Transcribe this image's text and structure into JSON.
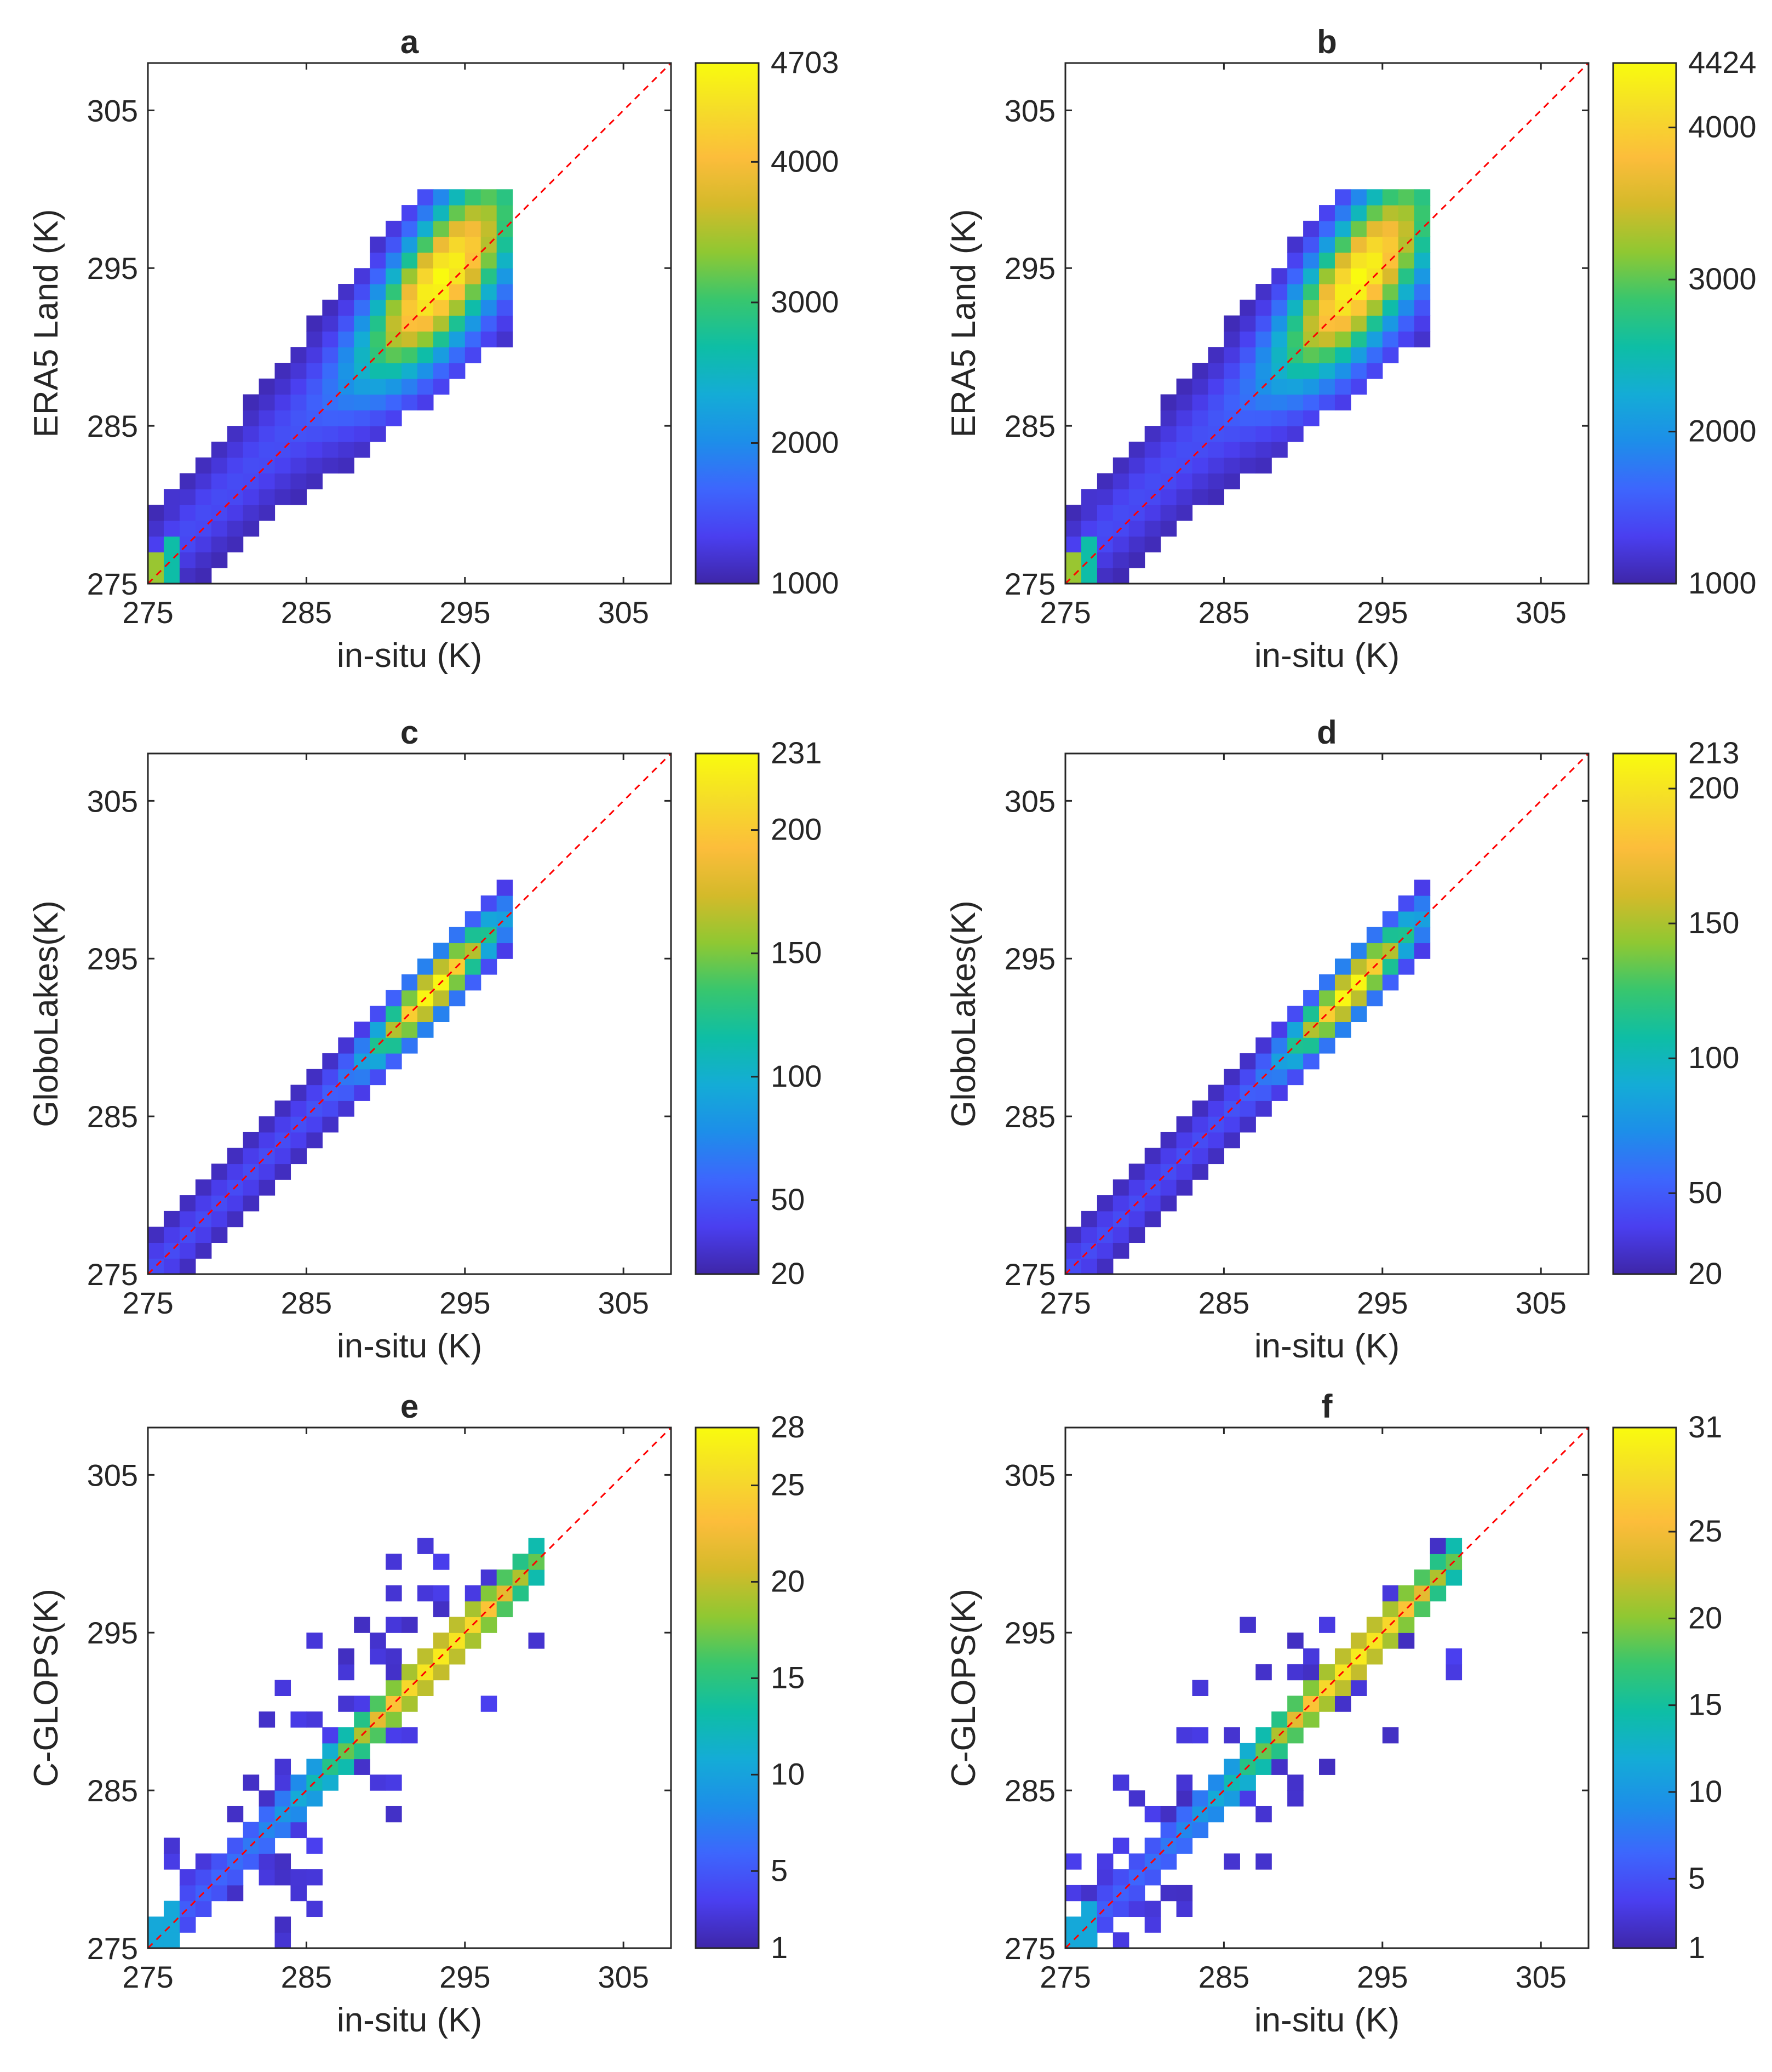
{
  "colors": {
    "reference_line": "#ff0000",
    "axes": "#262626",
    "colormap": [
      "#3e26a8",
      "#4a3ff0",
      "#3d66fd",
      "#1d8ee9",
      "#14acd6",
      "#0ebea5",
      "#38c66e",
      "#8fc832",
      "#d4ba2a",
      "#fcbd3b",
      "#f5dc29",
      "#f9fb0e"
    ]
  },
  "chart_data": [
    {
      "panel": "a",
      "type": "heatmap",
      "title": "a",
      "xlabel": "in-situ (K)",
      "ylabel": "ERA5 Land (K)",
      "xlim": [
        275,
        308
      ],
      "ylim": [
        275,
        308
      ],
      "xticks": [
        275,
        285,
        295,
        305
      ],
      "yticks": [
        275,
        285,
        295,
        305
      ],
      "bin_size": 1,
      "reference_line": "1:1",
      "colorbar": {
        "min": 1000,
        "max": 4703,
        "ticks": [
          1000,
          2000,
          3000,
          4000,
          4703
        ]
      },
      "density": {
        "kind": "wide",
        "x_range": [
          275,
          298
        ],
        "peak": [
          293.5,
          294.5
        ],
        "spread": 2.6,
        "low_x_cluster": true
      }
    },
    {
      "panel": "b",
      "type": "heatmap",
      "title": "b",
      "xlabel": "in-situ (K)",
      "ylabel": "ERA5 Land (K)",
      "xlim": [
        275,
        308
      ],
      "ylim": [
        275,
        308
      ],
      "xticks": [
        275,
        285,
        295,
        305
      ],
      "yticks": [
        275,
        285,
        295,
        305
      ],
      "bin_size": 1,
      "reference_line": "1:1",
      "colorbar": {
        "min": 1000,
        "max": 4424,
        "ticks": [
          1000,
          2000,
          3000,
          4000,
          4424
        ]
      },
      "density": {
        "kind": "wide",
        "x_range": [
          275,
          298
        ],
        "peak": [
          293.5,
          294.5
        ],
        "spread": 2.6,
        "low_x_cluster": true
      }
    },
    {
      "panel": "c",
      "type": "heatmap",
      "title": "c",
      "xlabel": "in-situ (K)",
      "ylabel": "GloboLakes(K)",
      "xlim": [
        275,
        308
      ],
      "ylim": [
        275,
        308
      ],
      "xticks": [
        275,
        285,
        295,
        305
      ],
      "yticks": [
        275,
        285,
        295,
        305
      ],
      "bin_size": 1,
      "reference_line": "1:1",
      "colorbar": {
        "min": 20,
        "max": 231,
        "ticks": [
          20,
          50,
          100,
          150,
          200,
          231
        ]
      },
      "density": {
        "kind": "narrow",
        "x_range": [
          275,
          298
        ],
        "peak": [
          293,
          293
        ],
        "spread": 1.2,
        "low_x_cluster": false
      }
    },
    {
      "panel": "d",
      "type": "heatmap",
      "title": "d",
      "xlabel": "in-situ (K)",
      "ylabel": "GloboLakes(K)",
      "xlim": [
        275,
        308
      ],
      "ylim": [
        275,
        308
      ],
      "xticks": [
        275,
        285,
        295,
        305
      ],
      "yticks": [
        275,
        285,
        295,
        305
      ],
      "bin_size": 1,
      "reference_line": "1:1",
      "colorbar": {
        "min": 20,
        "max": 213,
        "ticks": [
          20,
          50,
          100,
          150,
          200,
          213
        ]
      },
      "density": {
        "kind": "narrow",
        "x_range": [
          275,
          298
        ],
        "peak": [
          293,
          293
        ],
        "spread": 1.2,
        "low_x_cluster": false
      }
    },
    {
      "panel": "e",
      "type": "heatmap",
      "title": "e",
      "xlabel": "in-situ (K)",
      "ylabel": "C-GLOPS(K)",
      "xlim": [
        275,
        308
      ],
      "ylim": [
        275,
        308
      ],
      "xticks": [
        275,
        285,
        295,
        305
      ],
      "yticks": [
        275,
        285,
        295,
        305
      ],
      "bin_size": 1,
      "reference_line": "1:1",
      "colorbar": {
        "min": 1,
        "max": 28,
        "ticks": [
          1,
          5,
          10,
          15,
          20,
          25,
          28
        ]
      },
      "density": {
        "kind": "sparse",
        "x_range": [
          275,
          300
        ],
        "peak": [
          293.5,
          293.5
        ],
        "spread": 1.3,
        "low_x_cluster": false
      }
    },
    {
      "panel": "f",
      "type": "heatmap",
      "title": "f",
      "xlabel": "in-situ (K)",
      "ylabel": "C-GLOPS(K)",
      "xlim": [
        275,
        308
      ],
      "ylim": [
        275,
        308
      ],
      "xticks": [
        275,
        285,
        295,
        305
      ],
      "yticks": [
        275,
        285,
        295,
        305
      ],
      "bin_size": 1,
      "reference_line": "1:1",
      "colorbar": {
        "min": 1,
        "max": 31,
        "ticks": [
          1,
          5,
          10,
          15,
          20,
          25,
          31
        ]
      },
      "density": {
        "kind": "sparse",
        "x_range": [
          275,
          300
        ],
        "peak": [
          293.5,
          293.5
        ],
        "spread": 1.3,
        "low_x_cluster": false
      }
    }
  ]
}
